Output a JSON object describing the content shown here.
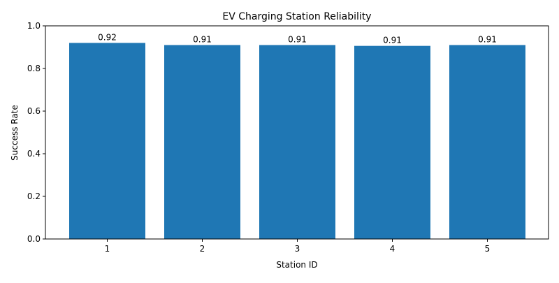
{
  "chart_data": {
    "type": "bar",
    "title": "EV Charging Station Reliability",
    "xlabel": "Station ID",
    "ylabel": "Success Rate",
    "categories": [
      "1",
      "2",
      "3",
      "4",
      "5"
    ],
    "values": [
      0.92,
      0.91,
      0.91,
      0.906,
      0.91
    ],
    "data_labels": [
      "0.92",
      "0.91",
      "0.91",
      "0.91",
      "0.91"
    ],
    "ylim": [
      0,
      1.0
    ],
    "yticks": [
      0.0,
      0.2,
      0.4,
      0.6,
      0.8,
      1.0
    ],
    "ytick_labels": [
      "0.0",
      "0.2",
      "0.4",
      "0.6",
      "0.8",
      "1.0"
    ],
    "grid": false,
    "legend": "none",
    "bar_color": "#1f77b4"
  }
}
